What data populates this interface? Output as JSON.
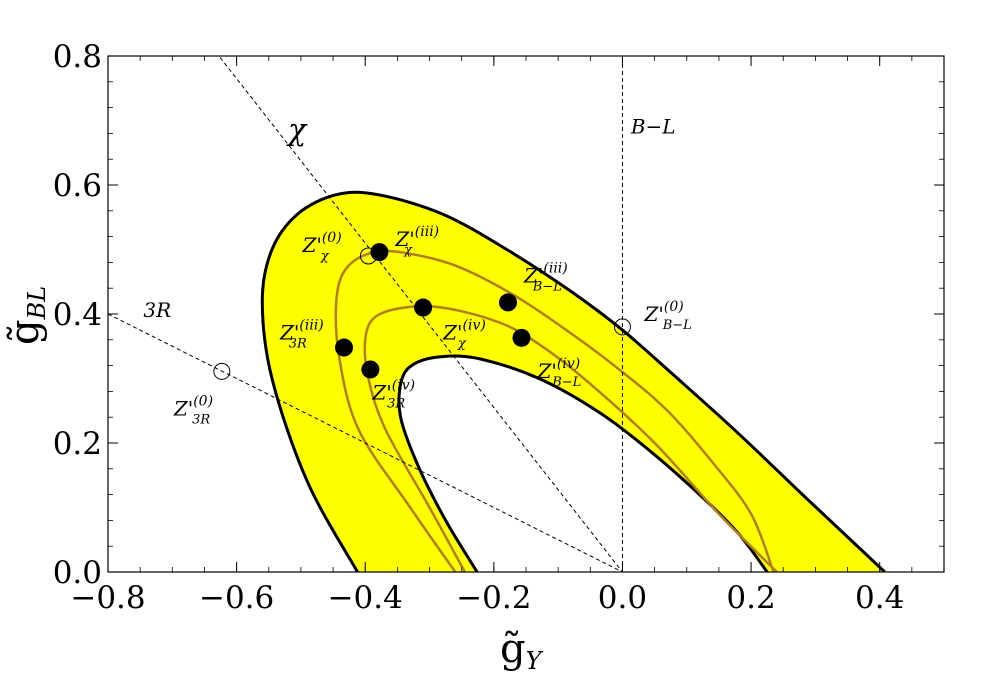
{
  "chart_data": {
    "type": "scatter",
    "title": "",
    "xlabel": "g̃",
    "xlabel_sub": "Y",
    "ylabel": "g̃",
    "ylabel_sub": "BL",
    "xlim": [
      -0.8,
      0.5
    ],
    "ylim": [
      0.0,
      0.8
    ],
    "x_ticks": [
      -0.8,
      -0.6,
      -0.4,
      -0.2,
      0.0,
      0.2,
      0.4
    ],
    "x_tick_labels": [
      "−0.8",
      "−0.6",
      "−0.4",
      "−0.2",
      "0.0",
      "0.2",
      "0.4"
    ],
    "y_ticks": [
      0.0,
      0.2,
      0.4,
      0.6,
      0.8
    ],
    "y_tick_labels": [
      "0.0",
      "0.2",
      "0.4",
      "0.6",
      "0.8"
    ],
    "grid": false,
    "colors": {
      "band_fill": "#ffff00",
      "band_edge": "#000000",
      "curve": "#b07e1a",
      "point": "#000000"
    },
    "band_outer": [
      [
        -0.412,
        0.0
      ],
      [
        -0.49,
        0.14
      ],
      [
        -0.545,
        0.3
      ],
      [
        -0.56,
        0.42
      ],
      [
        -0.545,
        0.5
      ],
      [
        -0.505,
        0.555
      ],
      [
        -0.445,
        0.585
      ],
      [
        -0.38,
        0.585
      ],
      [
        -0.28,
        0.555
      ],
      [
        -0.18,
        0.5
      ],
      [
        -0.08,
        0.435
      ],
      [
        0.0,
        0.375
      ],
      [
        0.08,
        0.305
      ],
      [
        0.18,
        0.215
      ],
      [
        0.28,
        0.12
      ],
      [
        0.36,
        0.045
      ],
      [
        0.408,
        0.0
      ]
    ],
    "band_inner": [
      [
        -0.226,
        0.0
      ],
      [
        -0.275,
        0.08
      ],
      [
        -0.318,
        0.165
      ],
      [
        -0.345,
        0.24
      ],
      [
        -0.344,
        0.295
      ],
      [
        -0.325,
        0.322
      ],
      [
        -0.28,
        0.334
      ],
      [
        -0.22,
        0.33
      ],
      [
        -0.13,
        0.3
      ],
      [
        -0.04,
        0.25
      ],
      [
        0.04,
        0.19
      ],
      [
        0.12,
        0.12
      ],
      [
        0.18,
        0.06
      ],
      [
        0.225,
        0.0
      ]
    ],
    "series": [
      {
        "name": "",
        "points": [
          [
            -0.245,
            0.0
          ],
          [
            -0.3,
            0.1
          ],
          [
            -0.368,
            0.22
          ],
          [
            -0.395,
            0.3
          ],
          [
            -0.4,
            0.36
          ],
          [
            -0.385,
            0.395
          ],
          [
            -0.34,
            0.41
          ],
          [
            -0.28,
            0.41
          ],
          [
            -0.2,
            0.39
          ],
          [
            -0.14,
            0.36
          ],
          [
            -0.06,
            0.3
          ],
          [
            0.05,
            0.2
          ],
          [
            0.15,
            0.09
          ],
          [
            0.24,
            0.0
          ]
        ]
      },
      {
        "name": "",
        "points": [
          [
            -0.26,
            0.0
          ],
          [
            -0.33,
            0.1
          ],
          [
            -0.41,
            0.22
          ],
          [
            -0.44,
            0.33
          ],
          [
            -0.445,
            0.42
          ],
          [
            -0.43,
            0.47
          ],
          [
            -0.39,
            0.495
          ],
          [
            -0.34,
            0.495
          ],
          [
            -0.26,
            0.475
          ],
          [
            -0.17,
            0.43
          ],
          [
            -0.08,
            0.37
          ],
          [
            0.0,
            0.31
          ],
          [
            0.07,
            0.25
          ],
          [
            0.14,
            0.17
          ],
          [
            0.2,
            0.09
          ],
          [
            0.235,
            0.0
          ]
        ]
      }
    ],
    "reference_lines": [
      {
        "label": "χ",
        "x1": -0.8,
        "y1": 1.02,
        "x2": 0.0,
        "y2": 0.0,
        "label_x": -0.52,
        "label_y": 0.67
      },
      {
        "label": "B−L",
        "x1": 0.0,
        "y1": 0.0,
        "x2": 0.0,
        "y2": 0.8,
        "label_x": 0.013,
        "label_y": 0.68
      },
      {
        "label": "3R",
        "x1": -0.8,
        "y1": 0.4,
        "x2": 0.0,
        "y2": 0.0,
        "label_x": -0.745,
        "label_y": 0.395
      }
    ],
    "benchmarks": [
      {
        "name": "Z'",
        "sup": "(0)",
        "sub": "χ",
        "x": -0.395,
        "y": 0.49,
        "filled": false
      },
      {
        "name": "Z'",
        "sup": "(iii)",
        "sub": "χ",
        "x": -0.378,
        "y": 0.496,
        "filled": true
      },
      {
        "name": "Z'",
        "sup": "(iv)",
        "sub": "χ",
        "x": -0.31,
        "y": 0.41,
        "filled": true
      },
      {
        "name": "Z'",
        "sup": "(iii)",
        "sub": "B−L",
        "x": -0.178,
        "y": 0.418,
        "filled": true
      },
      {
        "name": "Z'",
        "sup": "(iv)",
        "sub": "B−L",
        "x": -0.157,
        "y": 0.363,
        "filled": true
      },
      {
        "name": "Z'",
        "sup": "(0)",
        "sub": "B−L",
        "x": 0.0,
        "y": 0.38,
        "filled": false
      },
      {
        "name": "Z'",
        "sup": "(iii)",
        "sub": "3R",
        "x": -0.433,
        "y": 0.348,
        "filled": true
      },
      {
        "name": "Z'",
        "sup": "(iv)",
        "sub": "3R",
        "x": -0.392,
        "y": 0.314,
        "filled": true
      },
      {
        "name": "Z'",
        "sup": "(0)",
        "sub": "3R",
        "x": -0.623,
        "y": 0.311,
        "filled": false
      }
    ]
  }
}
